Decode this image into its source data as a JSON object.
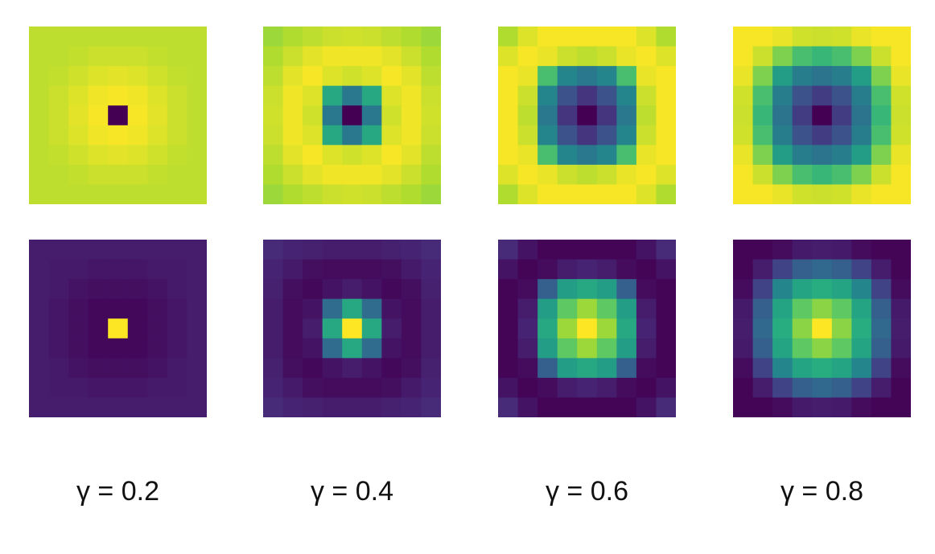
{
  "chart_data": {
    "type": "heatmap",
    "grid_size": 9,
    "colormap": "viridis",
    "colormap_stops": [
      "#440154",
      "#472d7b",
      "#3b528b",
      "#2c728e",
      "#21918c",
      "#28ae80",
      "#5ec962",
      "#addc30",
      "#fde725"
    ],
    "columns": [
      {
        "caption": "γ = 0.2",
        "gamma": 0.2,
        "panels": [
          {
            "row": "top",
            "values": [
              [
                0.9,
                0.9,
                0.9,
                0.9,
                0.9,
                0.9,
                0.9,
                0.9,
                0.9
              ],
              [
                0.9,
                0.9,
                0.91,
                0.92,
                0.92,
                0.92,
                0.91,
                0.9,
                0.9
              ],
              [
                0.9,
                0.91,
                0.93,
                0.95,
                0.96,
                0.95,
                0.93,
                0.91,
                0.9
              ],
              [
                0.9,
                0.92,
                0.95,
                0.98,
                0.99,
                0.98,
                0.95,
                0.92,
                0.9
              ],
              [
                0.9,
                0.92,
                0.96,
                0.99,
                0.0,
                0.99,
                0.96,
                0.92,
                0.9
              ],
              [
                0.9,
                0.92,
                0.95,
                0.98,
                0.99,
                0.98,
                0.95,
                0.92,
                0.9
              ],
              [
                0.9,
                0.91,
                0.93,
                0.95,
                0.96,
                0.95,
                0.93,
                0.91,
                0.9
              ],
              [
                0.9,
                0.9,
                0.91,
                0.92,
                0.92,
                0.92,
                0.91,
                0.9,
                0.9
              ],
              [
                0.9,
                0.9,
                0.9,
                0.9,
                0.9,
                0.9,
                0.9,
                0.9,
                0.9
              ]
            ]
          },
          {
            "row": "bottom",
            "values": [
              [
                0.08,
                0.08,
                0.08,
                0.08,
                0.08,
                0.08,
                0.08,
                0.08,
                0.08
              ],
              [
                0.08,
                0.07,
                0.07,
                0.06,
                0.06,
                0.06,
                0.07,
                0.07,
                0.08
              ],
              [
                0.08,
                0.07,
                0.05,
                0.04,
                0.04,
                0.04,
                0.05,
                0.07,
                0.08
              ],
              [
                0.08,
                0.06,
                0.04,
                0.02,
                0.02,
                0.02,
                0.04,
                0.06,
                0.08
              ],
              [
                0.08,
                0.06,
                0.04,
                0.02,
                1.0,
                0.02,
                0.04,
                0.06,
                0.08
              ],
              [
                0.08,
                0.06,
                0.04,
                0.02,
                0.02,
                0.02,
                0.04,
                0.06,
                0.08
              ],
              [
                0.08,
                0.07,
                0.05,
                0.04,
                0.04,
                0.04,
                0.05,
                0.07,
                0.08
              ],
              [
                0.08,
                0.07,
                0.07,
                0.06,
                0.06,
                0.06,
                0.07,
                0.07,
                0.08
              ],
              [
                0.08,
                0.08,
                0.08,
                0.08,
                0.08,
                0.08,
                0.08,
                0.08,
                0.08
              ]
            ]
          }
        ]
      },
      {
        "caption": "γ = 0.4",
        "gamma": 0.4,
        "panels": [
          {
            "row": "top",
            "values": [
              [
                0.85,
                0.88,
                0.9,
                0.92,
                0.93,
                0.92,
                0.9,
                0.88,
                0.85
              ],
              [
                0.88,
                0.92,
                0.96,
                0.98,
                0.98,
                0.98,
                0.96,
                0.92,
                0.88
              ],
              [
                0.9,
                0.96,
                0.99,
                0.95,
                0.93,
                0.95,
                0.99,
                0.96,
                0.9
              ],
              [
                0.92,
                0.98,
                0.95,
                0.6,
                0.4,
                0.6,
                0.95,
                0.98,
                0.92
              ],
              [
                0.93,
                0.98,
                0.93,
                0.4,
                0.0,
                0.4,
                0.93,
                0.98,
                0.93
              ],
              [
                0.92,
                0.98,
                0.95,
                0.6,
                0.4,
                0.6,
                0.95,
                0.98,
                0.92
              ],
              [
                0.9,
                0.96,
                0.99,
                0.95,
                0.93,
                0.95,
                0.99,
                0.96,
                0.9
              ],
              [
                0.88,
                0.92,
                0.96,
                0.98,
                0.98,
                0.98,
                0.96,
                0.92,
                0.88
              ],
              [
                0.85,
                0.88,
                0.9,
                0.92,
                0.93,
                0.92,
                0.9,
                0.88,
                0.85
              ]
            ]
          },
          {
            "row": "bottom",
            "values": [
              [
                0.12,
                0.1,
                0.09,
                0.08,
                0.08,
                0.08,
                0.09,
                0.1,
                0.12
              ],
              [
                0.1,
                0.07,
                0.04,
                0.03,
                0.03,
                0.03,
                0.04,
                0.07,
                0.1
              ],
              [
                0.09,
                0.04,
                0.02,
                0.05,
                0.08,
                0.05,
                0.02,
                0.04,
                0.09
              ],
              [
                0.08,
                0.03,
                0.05,
                0.35,
                0.6,
                0.35,
                0.05,
                0.03,
                0.08
              ],
              [
                0.08,
                0.03,
                0.08,
                0.6,
                1.0,
                0.6,
                0.08,
                0.03,
                0.08
              ],
              [
                0.08,
                0.03,
                0.05,
                0.35,
                0.6,
                0.35,
                0.05,
                0.03,
                0.08
              ],
              [
                0.09,
                0.04,
                0.02,
                0.05,
                0.08,
                0.05,
                0.02,
                0.04,
                0.09
              ],
              [
                0.1,
                0.07,
                0.04,
                0.03,
                0.03,
                0.03,
                0.04,
                0.07,
                0.1
              ],
              [
                0.12,
                0.1,
                0.09,
                0.08,
                0.08,
                0.08,
                0.09,
                0.1,
                0.12
              ]
            ]
          }
        ]
      },
      {
        "caption": "γ = 0.6",
        "gamma": 0.6,
        "panels": [
          {
            "row": "top",
            "values": [
              [
                0.88,
                0.95,
                0.99,
                0.99,
                0.99,
                0.99,
                0.99,
                0.95,
                0.88
              ],
              [
                0.95,
                0.99,
                0.97,
                0.92,
                0.9,
                0.92,
                0.97,
                0.99,
                0.95
              ],
              [
                0.99,
                0.97,
                0.7,
                0.45,
                0.4,
                0.45,
                0.7,
                0.97,
                0.99
              ],
              [
                0.99,
                0.92,
                0.45,
                0.25,
                0.15,
                0.25,
                0.45,
                0.92,
                0.99
              ],
              [
                0.99,
                0.9,
                0.4,
                0.15,
                0.0,
                0.15,
                0.4,
                0.9,
                0.99
              ],
              [
                0.99,
                0.92,
                0.45,
                0.25,
                0.15,
                0.25,
                0.45,
                0.92,
                0.99
              ],
              [
                0.99,
                0.97,
                0.7,
                0.45,
                0.4,
                0.45,
                0.7,
                0.97,
                0.99
              ],
              [
                0.95,
                0.99,
                0.97,
                0.92,
                0.9,
                0.92,
                0.97,
                0.99,
                0.95
              ],
              [
                0.88,
                0.95,
                0.99,
                0.99,
                0.99,
                0.99,
                0.99,
                0.95,
                0.88
              ]
            ]
          },
          {
            "row": "bottom",
            "values": [
              [
                0.12,
                0.05,
                0.01,
                0.01,
                0.01,
                0.01,
                0.01,
                0.05,
                0.12
              ],
              [
                0.05,
                0.01,
                0.03,
                0.08,
                0.1,
                0.08,
                0.03,
                0.01,
                0.05
              ],
              [
                0.01,
                0.03,
                0.3,
                0.55,
                0.6,
                0.55,
                0.3,
                0.03,
                0.01
              ],
              [
                0.01,
                0.08,
                0.55,
                0.75,
                0.85,
                0.75,
                0.55,
                0.08,
                0.01
              ],
              [
                0.01,
                0.1,
                0.6,
                0.85,
                1.0,
                0.85,
                0.6,
                0.1,
                0.01
              ],
              [
                0.01,
                0.08,
                0.55,
                0.75,
                0.85,
                0.75,
                0.55,
                0.08,
                0.01
              ],
              [
                0.01,
                0.03,
                0.3,
                0.55,
                0.6,
                0.55,
                0.3,
                0.03,
                0.01
              ],
              [
                0.05,
                0.01,
                0.03,
                0.08,
                0.1,
                0.08,
                0.03,
                0.01,
                0.05
              ],
              [
                0.12,
                0.05,
                0.01,
                0.01,
                0.01,
                0.01,
                0.01,
                0.05,
                0.12
              ]
            ]
          }
        ]
      },
      {
        "caption": "γ = 0.8",
        "gamma": 0.8,
        "panels": [
          {
            "row": "top",
            "values": [
              [
                0.99,
                0.99,
                0.97,
                0.93,
                0.92,
                0.93,
                0.97,
                0.99,
                0.99
              ],
              [
                0.99,
                0.92,
                0.8,
                0.7,
                0.66,
                0.7,
                0.8,
                0.92,
                0.99
              ],
              [
                0.97,
                0.8,
                0.55,
                0.42,
                0.38,
                0.42,
                0.55,
                0.8,
                0.97
              ],
              [
                0.93,
                0.7,
                0.42,
                0.25,
                0.18,
                0.25,
                0.42,
                0.7,
                0.93
              ],
              [
                0.92,
                0.66,
                0.38,
                0.18,
                0.0,
                0.18,
                0.38,
                0.66,
                0.92
              ],
              [
                0.93,
                0.7,
                0.42,
                0.25,
                0.18,
                0.25,
                0.42,
                0.7,
                0.93
              ],
              [
                0.97,
                0.8,
                0.55,
                0.42,
                0.38,
                0.42,
                0.55,
                0.8,
                0.97
              ],
              [
                0.99,
                0.92,
                0.8,
                0.7,
                0.66,
                0.7,
                0.8,
                0.92,
                0.99
              ],
              [
                0.99,
                0.99,
                0.97,
                0.93,
                0.92,
                0.93,
                0.97,
                0.99,
                0.99
              ]
            ]
          },
          {
            "row": "bottom",
            "values": [
              [
                0.01,
                0.01,
                0.03,
                0.07,
                0.08,
                0.07,
                0.03,
                0.01,
                0.01
              ],
              [
                0.01,
                0.08,
                0.2,
                0.3,
                0.34,
                0.3,
                0.2,
                0.08,
                0.01
              ],
              [
                0.03,
                0.2,
                0.45,
                0.58,
                0.62,
                0.58,
                0.45,
                0.2,
                0.03
              ],
              [
                0.07,
                0.3,
                0.58,
                0.75,
                0.82,
                0.75,
                0.58,
                0.3,
                0.07
              ],
              [
                0.08,
                0.34,
                0.62,
                0.82,
                1.0,
                0.82,
                0.62,
                0.34,
                0.08
              ],
              [
                0.07,
                0.3,
                0.58,
                0.75,
                0.82,
                0.75,
                0.58,
                0.3,
                0.07
              ],
              [
                0.03,
                0.2,
                0.45,
                0.58,
                0.62,
                0.58,
                0.45,
                0.2,
                0.03
              ],
              [
                0.01,
                0.08,
                0.2,
                0.3,
                0.34,
                0.3,
                0.2,
                0.08,
                0.01
              ],
              [
                0.01,
                0.01,
                0.03,
                0.07,
                0.08,
                0.07,
                0.03,
                0.01,
                0.01
              ]
            ]
          }
        ]
      }
    ]
  }
}
